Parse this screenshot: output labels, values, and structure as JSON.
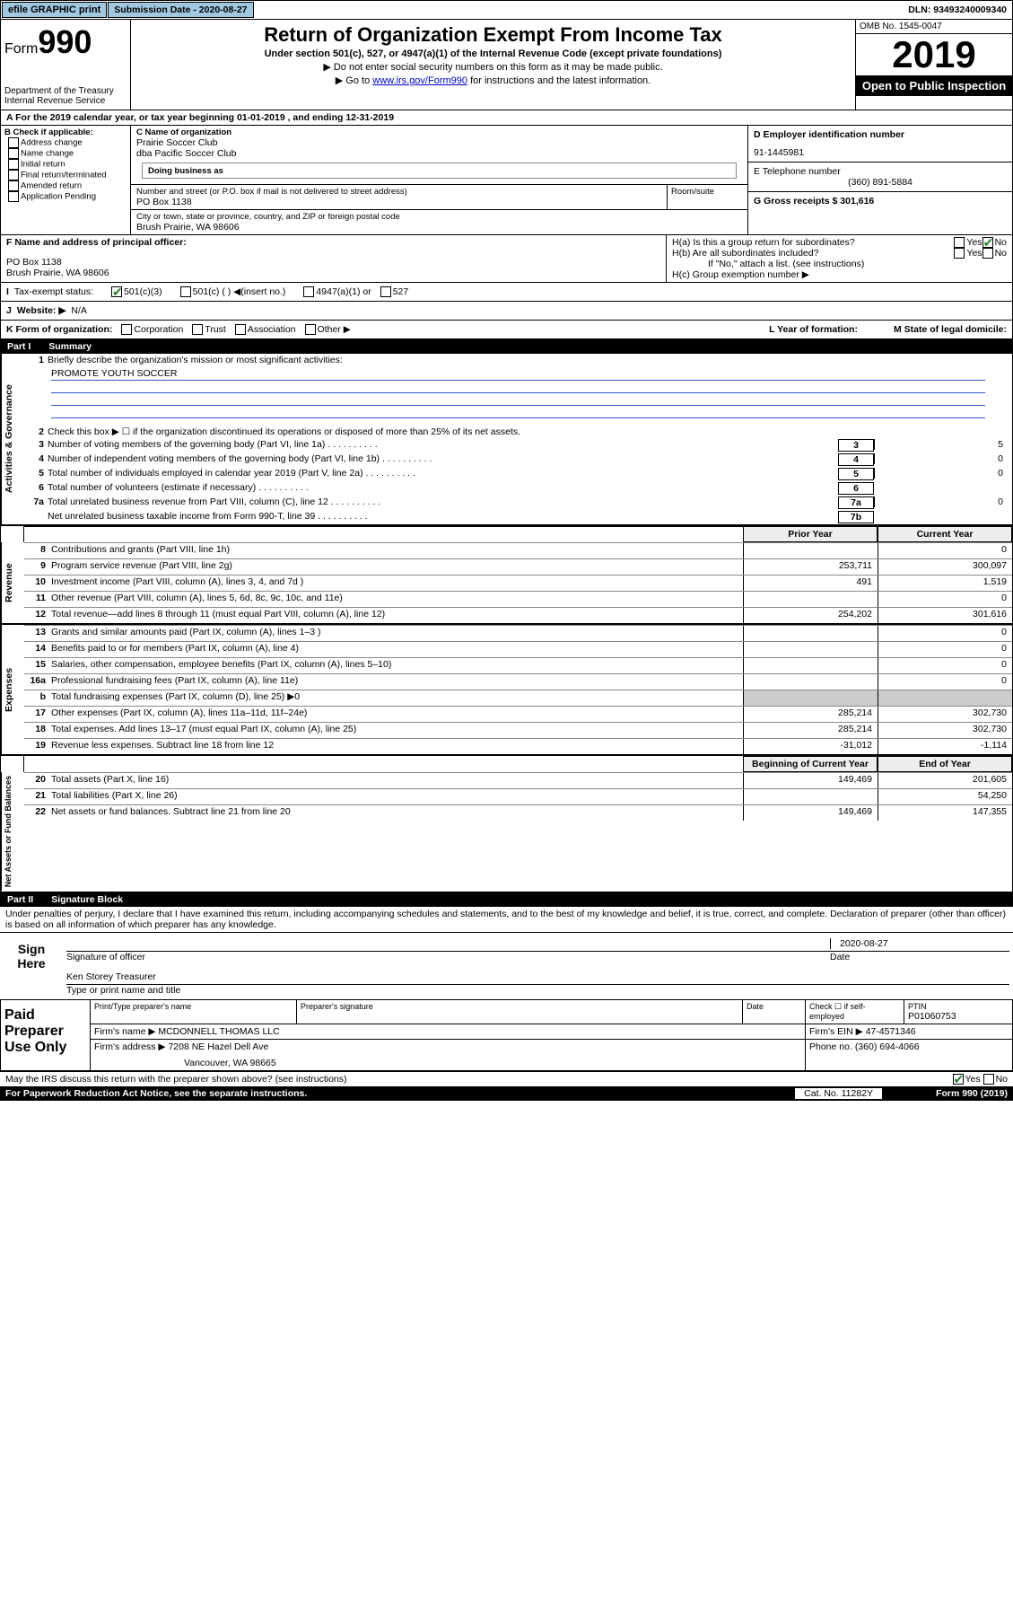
{
  "topbar": {
    "efile": "efile GRAPHIC print",
    "subdate_label": "Submission Date - 2020-08-27",
    "dln": "DLN: 93493240009340"
  },
  "header": {
    "form_prefix": "Form",
    "form_number": "990",
    "dept": "Department of the Treasury\nInternal Revenue Service",
    "title": "Return of Organization Exempt From Income Tax",
    "subtitle": "Under section 501(c), 527, or 4947(a)(1) of the Internal Revenue Code (except private foundations)",
    "note1": "▶ Do not enter social security numbers on this form as it may be made public.",
    "note2_pre": "▶ Go to ",
    "note2_link": "www.irs.gov/Form990",
    "note2_post": " for instructions and the latest information.",
    "omb": "OMB No. 1545-0047",
    "year": "2019",
    "open": "Open to Public Inspection"
  },
  "period": "A   For the 2019 calendar year, or tax year beginning 01-01-2019     , and ending 12-31-2019",
  "boxB": {
    "hdr": "B Check if applicable:",
    "items": [
      "Address change",
      "Name change",
      "Initial return",
      "Final return/terminated",
      "Amended return",
      "Application Pending"
    ]
  },
  "boxC": {
    "name_lbl": "C Name of organization",
    "name1": "Prairie Soccer Club",
    "name2": "dba Pacific Soccer Club",
    "dba_lbl": "Doing business as",
    "addr_lbl": "Number and street (or P.O. box if mail is not delivered to street address)",
    "room_lbl": "Room/suite",
    "addr": "PO Box 1138",
    "city_lbl": "City or town, state or province, country, and ZIP or foreign postal code",
    "city": "Brush Prairie, WA  98606"
  },
  "boxD": {
    "lbl": "D Employer identification number",
    "val": "91-1445981"
  },
  "boxE": {
    "lbl": "E Telephone number",
    "val": "(360) 891-5884"
  },
  "boxG": {
    "lbl": "G Gross receipts $ 301,616"
  },
  "boxF": {
    "lbl": "F  Name and address of principal officer:",
    "addr1": "PO Box 1138",
    "addr2": "Brush Prairie, WA  98606"
  },
  "boxH": {
    "a_lbl": "H(a)  Is this a group return for subordinates?",
    "b_lbl": "H(b)  Are all subordinates included?",
    "b_note": "If \"No,\" attach a list. (see instructions)",
    "c_lbl": "H(c)  Group exemption number ▶"
  },
  "taxexempt": {
    "tag": "I",
    "lbl": "Tax-exempt status:",
    "opt1": "501(c)(3)",
    "opt2": "501(c) (  ) ◀(insert no.)",
    "opt3": "4947(a)(1) or",
    "opt4": "527"
  },
  "website": {
    "tag": "J",
    "lbl": "Website: ▶",
    "val": "N/A"
  },
  "lineK": {
    "lbl": "K Form of organization:",
    "opts": [
      "Corporation",
      "Trust",
      "Association",
      "Other ▶"
    ],
    "L": "L Year of formation:",
    "M": "M State of legal domicile:"
  },
  "part1": {
    "num": "Part I",
    "title": "Summary"
  },
  "summary": {
    "q1_lbl": "Briefly describe the organization's mission or most significant activities:",
    "q1_val": "PROMOTE YOUTH SOCCER",
    "q2": "Check this box ▶ ☐  if the organization discontinued its operations or disposed of more than 25% of its net assets.",
    "lines": [
      {
        "n": "3",
        "t": "Number of voting members of the governing body (Part VI, line 1a)",
        "box": "3",
        "val": "5"
      },
      {
        "n": "4",
        "t": "Number of independent voting members of the governing body (Part VI, line 1b)",
        "box": "4",
        "val": "0"
      },
      {
        "n": "5",
        "t": "Total number of individuals employed in calendar year 2019 (Part V, line 2a)",
        "box": "5",
        "val": "0"
      },
      {
        "n": "6",
        "t": "Total number of volunteers (estimate if necessary)",
        "box": "6",
        "val": ""
      },
      {
        "n": "7a",
        "t": "Total unrelated business revenue from Part VIII, column (C), line 12",
        "box": "7a",
        "val": "0"
      },
      {
        "n": "",
        "t": "Net unrelated business taxable income from Form 990-T, line 39",
        "box": "7b",
        "val": ""
      }
    ]
  },
  "fin": {
    "prior_hdr": "Prior Year",
    "curr_hdr": "Current Year",
    "boc_hdr": "Beginning of Current Year",
    "eoy_hdr": "End of Year",
    "revenue": [
      {
        "n": "8",
        "t": "Contributions and grants (Part VIII, line 1h)",
        "pv": "",
        "cv": "0"
      },
      {
        "n": "9",
        "t": "Program service revenue (Part VIII, line 2g)",
        "pv": "253,711",
        "cv": "300,097"
      },
      {
        "n": "10",
        "t": "Investment income (Part VIII, column (A), lines 3, 4, and 7d )",
        "pv": "491",
        "cv": "1,519"
      },
      {
        "n": "11",
        "t": "Other revenue (Part VIII, column (A), lines 5, 6d, 8c, 9c, 10c, and 11e)",
        "pv": "",
        "cv": "0"
      },
      {
        "n": "12",
        "t": "Total revenue—add lines 8 through 11 (must equal Part VIII, column (A), line 12)",
        "pv": "254,202",
        "cv": "301,616"
      }
    ],
    "expenses": [
      {
        "n": "13",
        "t": "Grants and similar amounts paid (Part IX, column (A), lines 1–3 )",
        "pv": "",
        "cv": "0"
      },
      {
        "n": "14",
        "t": "Benefits paid to or for members (Part IX, column (A), line 4)",
        "pv": "",
        "cv": "0"
      },
      {
        "n": "15",
        "t": "Salaries, other compensation, employee benefits (Part IX, column (A), lines 5–10)",
        "pv": "",
        "cv": "0"
      },
      {
        "n": "16a",
        "t": "Professional fundraising fees (Part IX, column (A), line 11e)",
        "pv": "",
        "cv": "0"
      },
      {
        "n": "b",
        "t": "Total fundraising expenses (Part IX, column (D), line 25) ▶0",
        "pv": "GREY",
        "cv": "GREY"
      },
      {
        "n": "17",
        "t": "Other expenses (Part IX, column (A), lines 11a–11d, 11f–24e)",
        "pv": "285,214",
        "cv": "302,730"
      },
      {
        "n": "18",
        "t": "Total expenses. Add lines 13–17 (must equal Part IX, column (A), line 25)",
        "pv": "285,214",
        "cv": "302,730"
      },
      {
        "n": "19",
        "t": "Revenue less expenses. Subtract line 18 from line 12",
        "pv": "-31,012",
        "cv": "-1,114"
      }
    ],
    "netassets": [
      {
        "n": "20",
        "t": "Total assets (Part X, line 16)",
        "pv": "149,469",
        "cv": "201,605"
      },
      {
        "n": "21",
        "t": "Total liabilities (Part X, line 26)",
        "pv": "",
        "cv": "54,250"
      },
      {
        "n": "22",
        "t": "Net assets or fund balances. Subtract line 21 from line 20",
        "pv": "149,469",
        "cv": "147,355"
      }
    ]
  },
  "part2": {
    "num": "Part II",
    "title": "Signature Block"
  },
  "sig": {
    "decl": "Under penalties of perjury, I declare that I have examined this return, including accompanying schedules and statements, and to the best of my knowledge and belief, it is true, correct, and complete. Declaration of preparer (other than officer) is based on all information of which preparer has any knowledge.",
    "sign_here": "Sign Here",
    "sig_lbl": "Signature of officer",
    "date_val": "2020-08-27",
    "date_lbl": "Date",
    "name_val": "Ken Storey Treasurer",
    "name_lbl": "Type or print name and title"
  },
  "paid": {
    "title": "Paid Preparer Use Only",
    "hdr": [
      "Print/Type preparer's name",
      "Preparer's signature",
      "Date"
    ],
    "check_lbl": "Check ☐ if self-employed",
    "ptin_lbl": "PTIN",
    "ptin_val": "P01060753",
    "firm_name_lbl": "Firm's name   ▶",
    "firm_name": "MCDONNELL THOMAS LLC",
    "firm_ein_lbl": "Firm's EIN ▶",
    "firm_ein": "47-4571346",
    "firm_addr_lbl": "Firm's address ▶",
    "firm_addr1": "7208 NE Hazel Dell Ave",
    "firm_addr2": "Vancouver, WA  98665",
    "phone_lbl": "Phone no.",
    "phone": "(360) 694-4066"
  },
  "discuss": "May the IRS discuss this return with the preparer shown above? (see instructions)",
  "paperwork": "For Paperwork Reduction Act Notice, see the separate instructions.",
  "catno": "Cat. No. 11282Y",
  "formno": "Form 990 (2019)",
  "sidelabels": {
    "gov": "Activities & Governance",
    "rev": "Revenue",
    "exp": "Expenses",
    "net": "Net Assets or Fund Balances"
  }
}
